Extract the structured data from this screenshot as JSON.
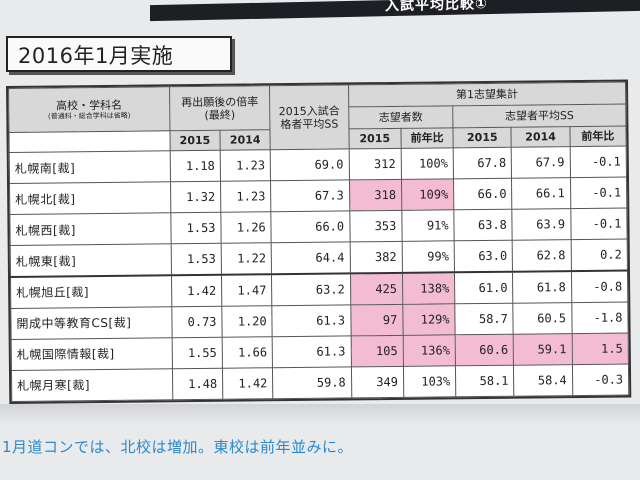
{
  "header_strip": {
    "text": "入試平均比較①"
  },
  "title": "2016年1月実施",
  "table": {
    "col_school": "高校・学科名",
    "col_school_note": "(普通科・総合学科は省略)",
    "col_ratio": "再出願後の倍率(最終)",
    "col_pass": "2015入試合格者平均SS",
    "col_group": "第1志望集計",
    "col_applicants": "志望者数",
    "col_avg_ss": "志望者平均SS",
    "years": {
      "y2015": "2015",
      "y2014": "2014",
      "yoy": "前年比"
    },
    "rows": [
      {
        "name": "札幌南[裁]",
        "r2015": "1.18",
        "r2014": "1.23",
        "pass": "69.0",
        "app": "312",
        "app_yoy": "100%",
        "ss2015": "67.8",
        "ss2014": "67.9",
        "ss_yoy": "-0.1"
      },
      {
        "name": "札幌北[裁]",
        "r2015": "1.32",
        "r2014": "1.23",
        "pass": "67.3",
        "app": "318",
        "app_yoy": "109%",
        "ss2015": "66.0",
        "ss2014": "66.1",
        "ss_yoy": "-0.1"
      },
      {
        "name": "札幌西[裁]",
        "r2015": "1.53",
        "r2014": "1.26",
        "pass": "66.0",
        "app": "353",
        "app_yoy": "91%",
        "ss2015": "63.8",
        "ss2014": "63.9",
        "ss_yoy": "-0.1"
      },
      {
        "name": "札幌東[裁]",
        "r2015": "1.53",
        "r2014": "1.22",
        "pass": "64.4",
        "app": "382",
        "app_yoy": "99%",
        "ss2015": "63.0",
        "ss2014": "62.8",
        "ss_yoy": "0.2"
      },
      {
        "name": "札幌旭丘[裁]",
        "r2015": "1.42",
        "r2014": "1.47",
        "pass": "63.2",
        "app": "425",
        "app_yoy": "138%",
        "ss2015": "61.0",
        "ss2014": "61.8",
        "ss_yoy": "-0.8"
      },
      {
        "name": "開成中等教育CS[裁]",
        "r2015": "0.73",
        "r2014": "1.20",
        "pass": "61.3",
        "app": "97",
        "app_yoy": "129%",
        "ss2015": "58.7",
        "ss2014": "60.5",
        "ss_yoy": "-1.8"
      },
      {
        "name": "札幌国際情報[裁]",
        "r2015": "1.55",
        "r2014": "1.66",
        "pass": "61.3",
        "app": "105",
        "app_yoy": "136%",
        "ss2015": "60.6",
        "ss2014": "59.1",
        "ss_yoy": "1.5"
      },
      {
        "name": "札幌月寒[裁]",
        "r2015": "1.48",
        "r2014": "1.42",
        "pass": "59.8",
        "app": "349",
        "app_yoy": "103%",
        "ss2015": "58.1",
        "ss2014": "58.4",
        "ss_yoy": "-0.3"
      }
    ]
  },
  "note": "1月道コンでは、北校は増加。東校は前年並みに。",
  "colors": {
    "highlight": "#f4bcd2",
    "header_bg": "#d8d8d8",
    "note_blue": "#2a8acb"
  }
}
